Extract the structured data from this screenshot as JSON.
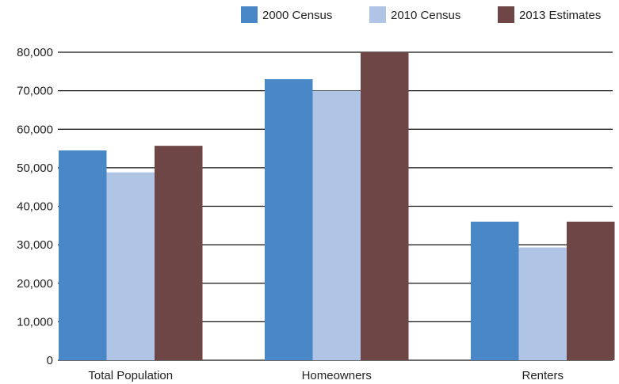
{
  "chart_data": {
    "type": "bar",
    "categories": [
      "Total Population",
      "Homeowners",
      "Renters"
    ],
    "series": [
      {
        "name": "2000 Census",
        "values": [
          54500,
          73000,
          36000
        ],
        "color": "#4a87c6"
      },
      {
        "name": "2010 Census",
        "values": [
          48800,
          70000,
          29300
        ],
        "color": "#b0c4e5"
      },
      {
        "name": "2013 Estimates",
        "values": [
          55700,
          80000,
          36000
        ],
        "color": "#6d4645"
      }
    ],
    "yticks": [
      "0",
      "10,000",
      "20,000",
      "30,000",
      "40,000",
      "50,000",
      "60,000",
      "70,000",
      "80,000"
    ],
    "ylim": [
      0,
      80000
    ],
    "grid": true,
    "legend_position": "top-right",
    "title": "",
    "xlabel": "",
    "ylabel": ""
  }
}
